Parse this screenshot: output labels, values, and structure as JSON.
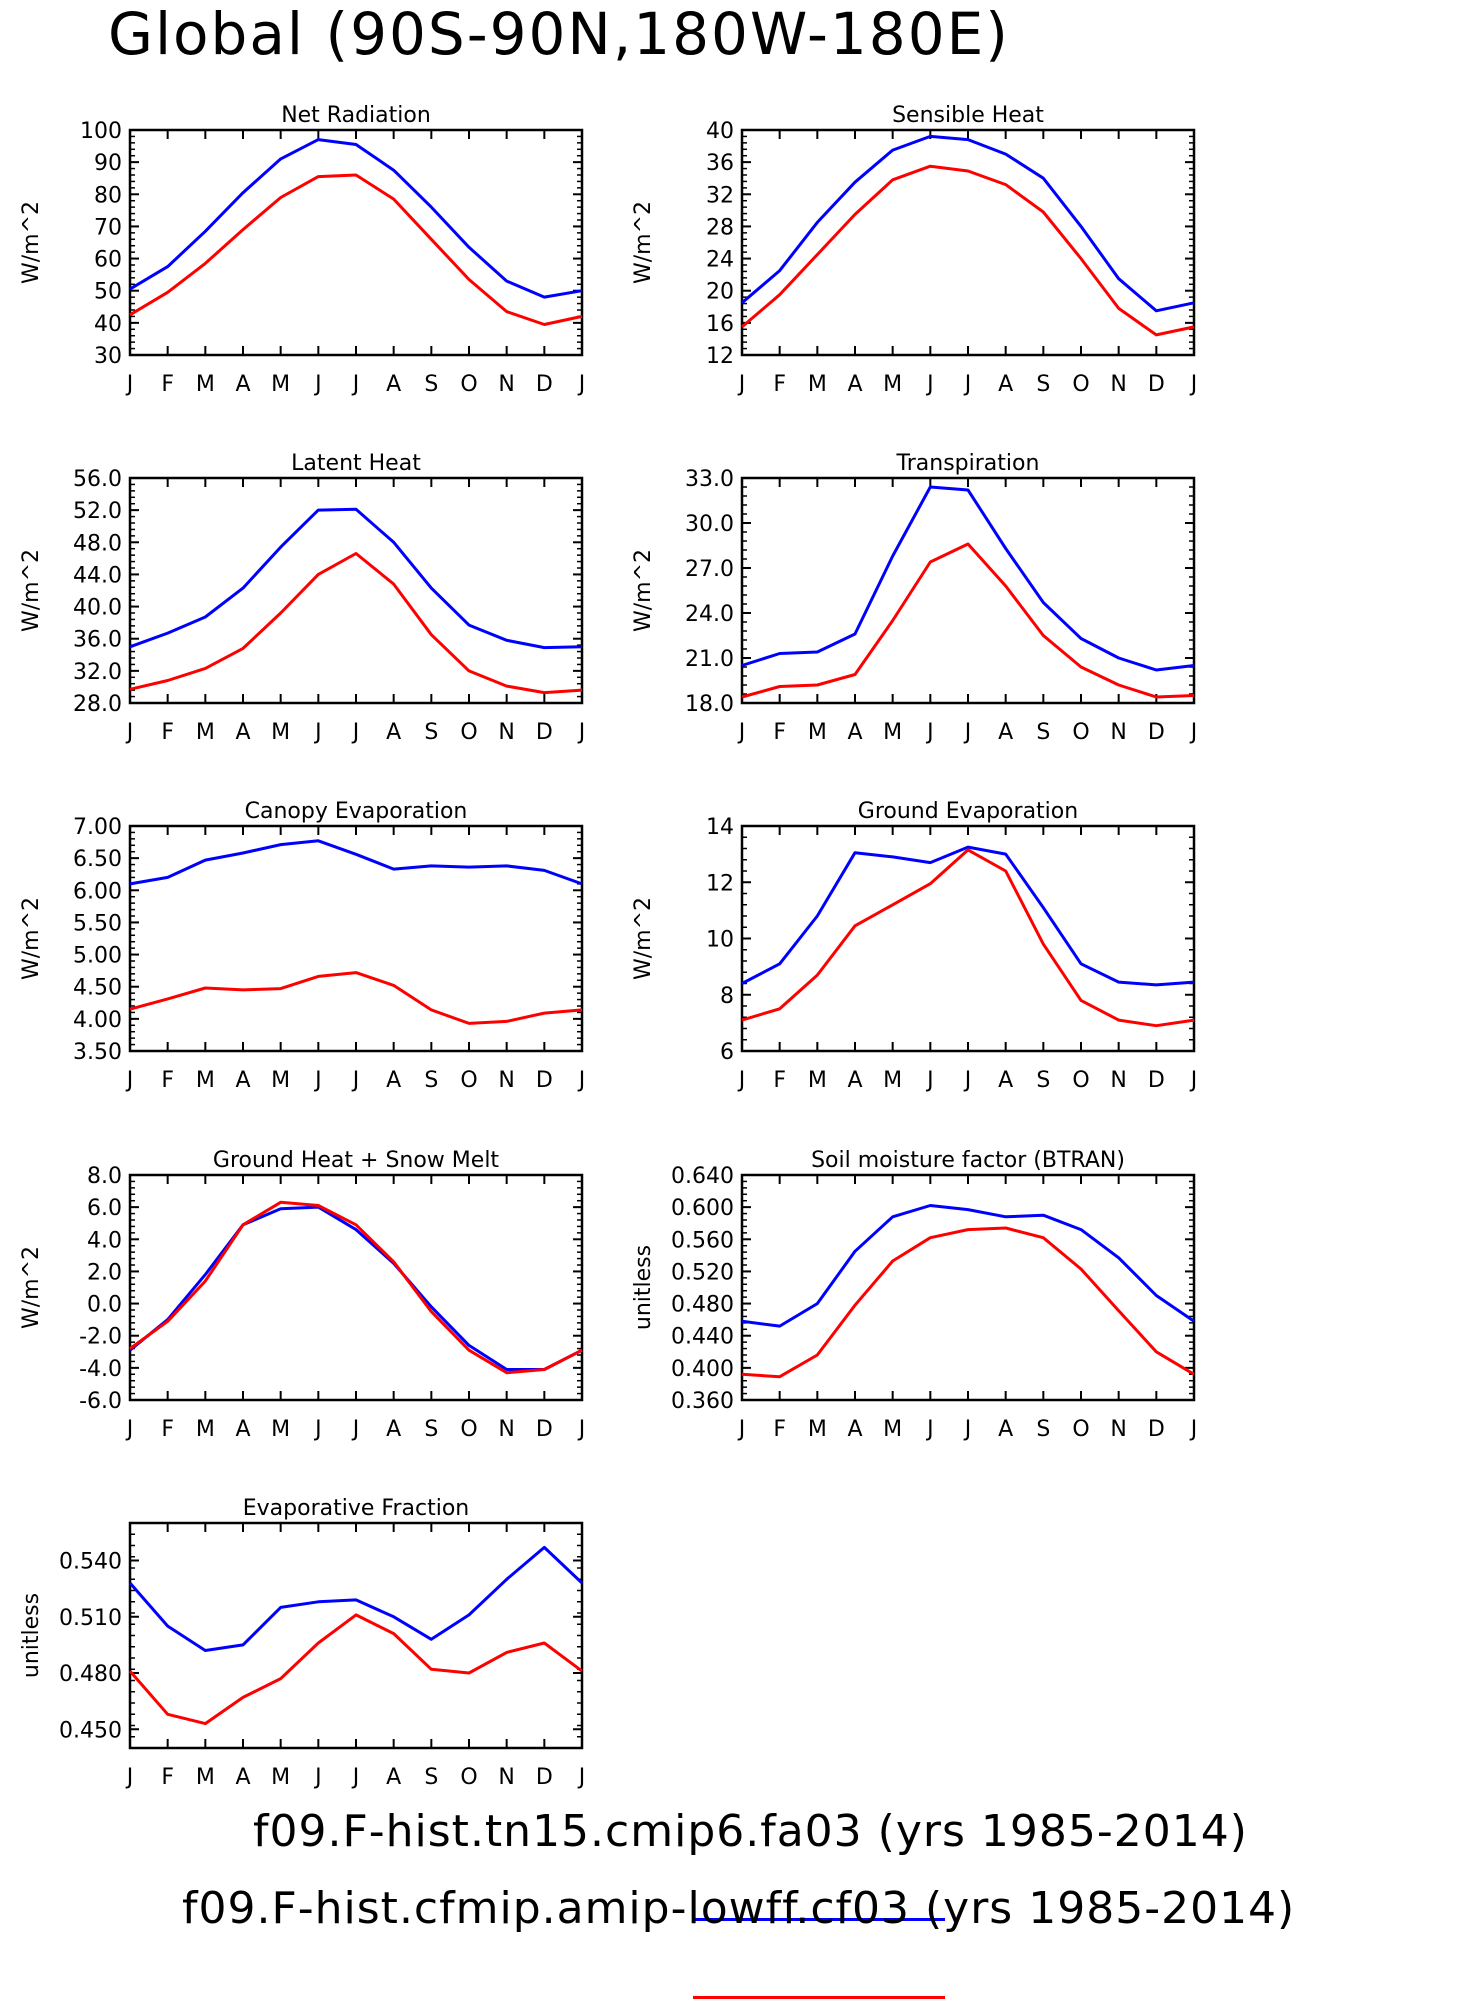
{
  "title": "Global (90S-90N,180W-180E)",
  "legend": [
    {
      "label": "f09.F-hist.tn15.cmip6.fa03 (yrs 1985-2014)",
      "color": "#0000ff"
    },
    {
      "label": "f09.F-hist.cfmip.amip-lowff.cf03 (yrs 1985-2014)",
      "color": "#ff0000"
    }
  ],
  "chart_data": [
    {
      "type": "line",
      "title": "Net Radiation",
      "ylabel": "W/m^2",
      "categories": [
        "J",
        "F",
        "M",
        "A",
        "M",
        "J",
        "J",
        "A",
        "S",
        "O",
        "N",
        "D",
        "J"
      ],
      "ylim": [
        30,
        100
      ],
      "yticks": [
        "30",
        "40",
        "50",
        "60",
        "70",
        "80",
        "90",
        "100"
      ],
      "series": [
        {
          "color": "#0000ff",
          "values": [
            50.5,
            57.5,
            68.5,
            80.5,
            91,
            97,
            95.5,
            87.5,
            76,
            63.5,
            53,
            48,
            50
          ]
        },
        {
          "color": "#ff0000",
          "values": [
            42.5,
            49.5,
            58.5,
            69,
            79,
            85.5,
            86,
            78.5,
            66,
            53.5,
            43.5,
            39.5,
            42
          ]
        }
      ]
    },
    {
      "type": "line",
      "title": "Sensible Heat",
      "ylabel": "W/m^2",
      "categories": [
        "J",
        "F",
        "M",
        "A",
        "M",
        "J",
        "J",
        "A",
        "S",
        "O",
        "N",
        "D",
        "J"
      ],
      "ylim": [
        12,
        40
      ],
      "yticks": [
        "12",
        "16",
        "20",
        "24",
        "28",
        "32",
        "36",
        "40"
      ],
      "series": [
        {
          "color": "#0000ff",
          "values": [
            18.5,
            22.5,
            28.5,
            33.5,
            37.5,
            39.2,
            38.8,
            37,
            34,
            28,
            21.5,
            17.5,
            18.5
          ]
        },
        {
          "color": "#ff0000",
          "values": [
            15.5,
            19.5,
            24.5,
            29.5,
            33.8,
            35.5,
            34.9,
            33.2,
            29.8,
            24,
            17.8,
            14.5,
            15.5
          ]
        }
      ]
    },
    {
      "type": "line",
      "title": "Latent Heat",
      "ylabel": "W/m^2",
      "categories": [
        "J",
        "F",
        "M",
        "A",
        "M",
        "J",
        "J",
        "A",
        "S",
        "O",
        "N",
        "D",
        "J"
      ],
      "ylim": [
        28,
        56
      ],
      "yticks": [
        "28.0",
        "32.0",
        "36.0",
        "40.0",
        "44.0",
        "48.0",
        "52.0",
        "56.0"
      ],
      "series": [
        {
          "color": "#0000ff",
          "values": [
            35,
            36.7,
            38.7,
            42.3,
            47.4,
            52,
            52.1,
            48,
            42.3,
            37.7,
            35.8,
            34.9,
            35
          ]
        },
        {
          "color": "#ff0000",
          "values": [
            29.7,
            30.8,
            32.3,
            34.8,
            39.2,
            44,
            46.6,
            42.8,
            36.5,
            32,
            30.1,
            29.3,
            29.6
          ]
        }
      ]
    },
    {
      "type": "line",
      "title": "Transpiration",
      "ylabel": "W/m^2",
      "categories": [
        "J",
        "F",
        "M",
        "A",
        "M",
        "J",
        "J",
        "A",
        "S",
        "O",
        "N",
        "D",
        "J"
      ],
      "ylim": [
        18,
        33
      ],
      "yticks": [
        "18.0",
        "21.0",
        "24.0",
        "27.0",
        "30.0",
        "33.0"
      ],
      "series": [
        {
          "color": "#0000ff",
          "values": [
            20.5,
            21.3,
            21.4,
            22.6,
            27.8,
            32.4,
            32.2,
            28.3,
            24.7,
            22.3,
            21,
            20.2,
            20.5
          ]
        },
        {
          "color": "#ff0000",
          "values": [
            18.4,
            19.1,
            19.2,
            19.9,
            23.5,
            27.4,
            28.6,
            25.8,
            22.5,
            20.4,
            19.2,
            18.4,
            18.5
          ]
        }
      ]
    },
    {
      "type": "line",
      "title": "Canopy Evaporation",
      "ylabel": "W/m^2",
      "categories": [
        "J",
        "F",
        "M",
        "A",
        "M",
        "J",
        "J",
        "A",
        "S",
        "O",
        "N",
        "D",
        "J"
      ],
      "ylim": [
        3.5,
        7.0
      ],
      "yticks": [
        "3.50",
        "4.00",
        "4.50",
        "5.00",
        "5.50",
        "6.00",
        "6.50",
        "7.00"
      ],
      "series": [
        {
          "color": "#0000ff",
          "values": [
            6.1,
            6.2,
            6.47,
            6.58,
            6.71,
            6.77,
            6.56,
            6.33,
            6.38,
            6.36,
            6.38,
            6.31,
            6.1
          ]
        },
        {
          "color": "#ff0000",
          "values": [
            4.15,
            4.31,
            4.48,
            4.45,
            4.47,
            4.66,
            4.72,
            4.52,
            4.14,
            3.93,
            3.96,
            4.09,
            4.14
          ]
        }
      ]
    },
    {
      "type": "line",
      "title": "Ground Evaporation",
      "ylabel": "W/m^2",
      "categories": [
        "J",
        "F",
        "M",
        "A",
        "M",
        "J",
        "J",
        "A",
        "S",
        "O",
        "N",
        "D",
        "J"
      ],
      "ylim": [
        6,
        14
      ],
      "yticks": [
        "6",
        "8",
        "10",
        "12",
        "14"
      ],
      "series": [
        {
          "color": "#0000ff",
          "values": [
            8.4,
            9.1,
            10.8,
            13.05,
            12.9,
            12.7,
            13.25,
            13,
            11.1,
            9.1,
            8.45,
            8.35,
            8.45
          ]
        },
        {
          "color": "#ff0000",
          "values": [
            7.1,
            7.5,
            8.7,
            10.45,
            11.2,
            11.95,
            13.15,
            12.4,
            9.8,
            7.8,
            7.1,
            6.9,
            7.1
          ]
        }
      ]
    },
    {
      "type": "line",
      "title": "Ground Heat + Snow Melt",
      "ylabel": "W/m^2",
      "categories": [
        "J",
        "F",
        "M",
        "A",
        "M",
        "J",
        "J",
        "A",
        "S",
        "O",
        "N",
        "D",
        "J"
      ],
      "ylim": [
        -6,
        8
      ],
      "yticks": [
        "-6.0",
        "-4.0",
        "-2.0",
        "0.0",
        "2.0",
        "4.0",
        "6.0",
        "8.0"
      ],
      "series": [
        {
          "color": "#0000ff",
          "values": [
            -2.9,
            -1.0,
            1.8,
            4.9,
            5.9,
            6.0,
            4.6,
            2.5,
            -0.2,
            -2.6,
            -4.1,
            -4.1,
            -2.9
          ]
        },
        {
          "color": "#ff0000",
          "values": [
            -2.8,
            -1.1,
            1.4,
            4.9,
            6.3,
            6.1,
            4.9,
            2.6,
            -0.5,
            -2.9,
            -4.3,
            -4.1,
            -2.9
          ]
        }
      ]
    },
    {
      "type": "line",
      "title": "Soil moisture factor (BTRAN)",
      "ylabel": "unitless",
      "categories": [
        "J",
        "F",
        "M",
        "A",
        "M",
        "J",
        "J",
        "A",
        "S",
        "O",
        "N",
        "D",
        "J"
      ],
      "ylim": [
        0.36,
        0.64
      ],
      "yticks": [
        "0.360",
        "0.400",
        "0.440",
        "0.480",
        "0.520",
        "0.560",
        "0.600",
        "0.640"
      ],
      "series": [
        {
          "color": "#0000ff",
          "values": [
            0.458,
            0.452,
            0.48,
            0.545,
            0.588,
            0.602,
            0.597,
            0.588,
            0.59,
            0.572,
            0.537,
            0.49,
            0.458
          ]
        },
        {
          "color": "#ff0000",
          "values": [
            0.392,
            0.389,
            0.416,
            0.478,
            0.533,
            0.562,
            0.572,
            0.574,
            0.562,
            0.523,
            0.471,
            0.42,
            0.392
          ]
        }
      ]
    },
    {
      "type": "line",
      "title": "Evaporative Fraction",
      "ylabel": "unitless",
      "categories": [
        "J",
        "F",
        "M",
        "A",
        "M",
        "J",
        "J",
        "A",
        "S",
        "O",
        "N",
        "D",
        "J"
      ],
      "ylim": [
        0.44,
        0.56
      ],
      "yticks": [
        "0.450",
        "0.480",
        "0.510",
        "0.540"
      ],
      "series": [
        {
          "color": "#0000ff",
          "values": [
            0.528,
            0.505,
            0.492,
            0.495,
            0.515,
            0.518,
            0.519,
            0.51,
            0.498,
            0.511,
            0.53,
            0.547,
            0.528
          ]
        },
        {
          "color": "#ff0000",
          "values": [
            0.481,
            0.458,
            0.453,
            0.467,
            0.477,
            0.496,
            0.511,
            0.501,
            0.482,
            0.48,
            0.491,
            0.496,
            0.481
          ]
        }
      ]
    }
  ]
}
